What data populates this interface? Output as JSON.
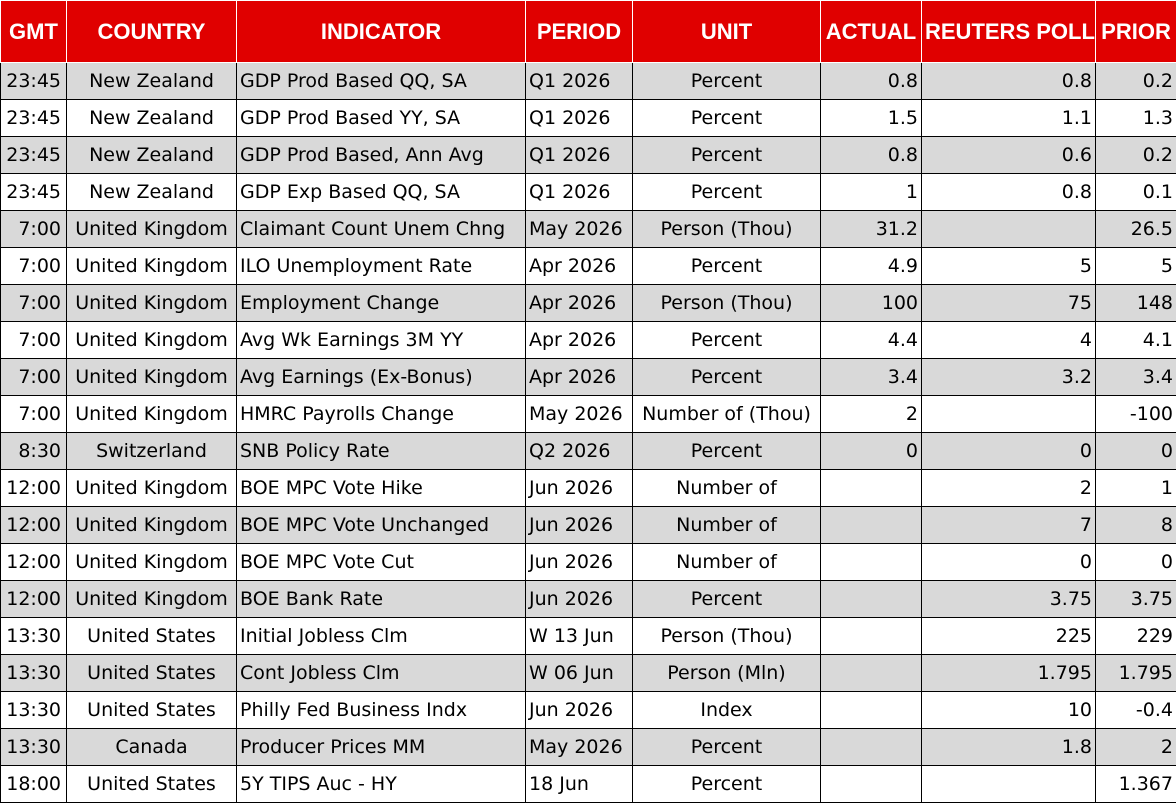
{
  "headers": {
    "gmt": "GMT",
    "country": "COUNTRY",
    "indicator": "INDICATOR",
    "period": "PERIOD",
    "unit": "UNIT",
    "actual": "ACTUAL",
    "poll": "REUTERS POLL",
    "prior": "PRIOR"
  },
  "colors": {
    "header_bg": "#e00000",
    "header_text": "#ffffff",
    "row_shade": "#d9d9d9",
    "row_plain": "#ffffff"
  },
  "rows": [
    {
      "gmt": "23:45",
      "country": "New Zealand",
      "indicator": "GDP Prod Based QQ, SA",
      "period": "Q1 2026",
      "unit": "Percent",
      "actual": "0.8",
      "poll": "0.8",
      "prior": "0.2"
    },
    {
      "gmt": "23:45",
      "country": "New Zealand",
      "indicator": "GDP Prod Based YY, SA",
      "period": "Q1 2026",
      "unit": "Percent",
      "actual": "1.5",
      "poll": "1.1",
      "prior": "1.3"
    },
    {
      "gmt": "23:45",
      "country": "New Zealand",
      "indicator": "GDP Prod Based, Ann Avg",
      "period": "Q1 2026",
      "unit": "Percent",
      "actual": "0.8",
      "poll": "0.6",
      "prior": "0.2"
    },
    {
      "gmt": "23:45",
      "country": "New Zealand",
      "indicator": "GDP Exp Based QQ, SA",
      "period": "Q1 2026",
      "unit": "Percent",
      "actual": "1",
      "poll": "0.8",
      "prior": "0.1"
    },
    {
      "gmt": "7:00",
      "country": "United Kingdom",
      "indicator": "Claimant Count Unem Chng",
      "period": "May 2026",
      "unit": "Person (Thou)",
      "actual": "31.2",
      "poll": "",
      "prior": "26.5"
    },
    {
      "gmt": "7:00",
      "country": "United Kingdom",
      "indicator": "ILO Unemployment Rate",
      "period": "Apr 2026",
      "unit": "Percent",
      "actual": "4.9",
      "poll": "5",
      "prior": "5"
    },
    {
      "gmt": "7:00",
      "country": "United Kingdom",
      "indicator": "Employment Change",
      "period": "Apr 2026",
      "unit": "Person (Thou)",
      "actual": "100",
      "poll": "75",
      "prior": "148"
    },
    {
      "gmt": "7:00",
      "country": "United Kingdom",
      "indicator": "Avg Wk Earnings 3M YY",
      "period": "Apr 2026",
      "unit": "Percent",
      "actual": "4.4",
      "poll": "4",
      "prior": "4.1"
    },
    {
      "gmt": "7:00",
      "country": "United Kingdom",
      "indicator": "Avg Earnings (Ex-Bonus)",
      "period": "Apr 2026",
      "unit": "Percent",
      "actual": "3.4",
      "poll": "3.2",
      "prior": "3.4"
    },
    {
      "gmt": "7:00",
      "country": "United Kingdom",
      "indicator": "HMRC Payrolls Change",
      "period": "May 2026",
      "unit": "Number of (Thou)",
      "actual": "2",
      "poll": "",
      "prior": "-100"
    },
    {
      "gmt": "8:30",
      "country": "Switzerland",
      "indicator": "SNB Policy Rate",
      "period": "Q2 2026",
      "unit": "Percent",
      "actual": "0",
      "poll": "0",
      "prior": "0"
    },
    {
      "gmt": "12:00",
      "country": "United Kingdom",
      "indicator": "BOE MPC Vote Hike",
      "period": "Jun 2026",
      "unit": "Number of",
      "actual": "",
      "poll": "2",
      "prior": "1"
    },
    {
      "gmt": "12:00",
      "country": "United Kingdom",
      "indicator": "BOE MPC Vote Unchanged",
      "period": "Jun 2026",
      "unit": "Number of",
      "actual": "",
      "poll": "7",
      "prior": "8"
    },
    {
      "gmt": "12:00",
      "country": "United Kingdom",
      "indicator": "BOE MPC Vote Cut",
      "period": "Jun 2026",
      "unit": "Number of",
      "actual": "",
      "poll": "0",
      "prior": "0"
    },
    {
      "gmt": "12:00",
      "country": "United Kingdom",
      "indicator": "BOE Bank Rate",
      "period": "Jun 2026",
      "unit": "Percent",
      "actual": "",
      "poll": "3.75",
      "prior": "3.75"
    },
    {
      "gmt": "13:30",
      "country": "United States",
      "indicator": "Initial Jobless Clm",
      "period": "W 13 Jun",
      "unit": "Person (Thou)",
      "actual": "",
      "poll": "225",
      "prior": "229"
    },
    {
      "gmt": "13:30",
      "country": "United States",
      "indicator": "Cont Jobless Clm",
      "period": "W 06 Jun",
      "unit": "Person (Mln)",
      "actual": "",
      "poll": "1.795",
      "prior": "1.795"
    },
    {
      "gmt": "13:30",
      "country": "United States",
      "indicator": "Philly Fed Business Indx",
      "period": "Jun 2026",
      "unit": "Index",
      "actual": "",
      "poll": "10",
      "prior": "-0.4"
    },
    {
      "gmt": "13:30",
      "country": "Canada",
      "indicator": "Producer Prices MM",
      "period": "May 2026",
      "unit": "Percent",
      "actual": "",
      "poll": "1.8",
      "prior": "2"
    },
    {
      "gmt": "18:00",
      "country": "United States",
      "indicator": "5Y TIPS Auc - HY",
      "period": "18 Jun",
      "unit": "Percent",
      "actual": "",
      "poll": "",
      "prior": "1.367"
    }
  ]
}
